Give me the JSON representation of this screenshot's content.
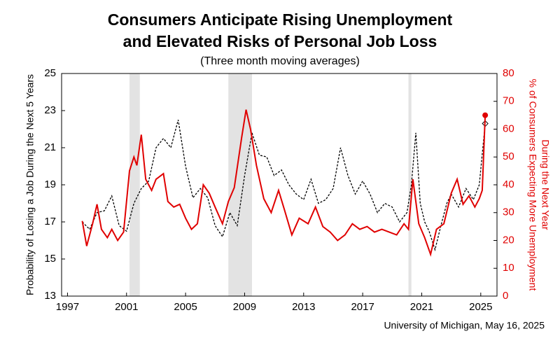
{
  "chart_data": {
    "type": "line",
    "title": [
      "Consumers Anticipate Rising Unemployment",
      "and Elevated Risks of Personal Job Loss"
    ],
    "subtitle": "(Three month moving averages)",
    "ylabel": "Probability of Losing a Job During the Next 5 Years",
    "y2label": [
      "% of Consumers Expecting More Unemployment",
      "During the Next Year"
    ],
    "source": "University of Michigan, May 16, 2025",
    "xlim": [
      1996.6,
      2026.1
    ],
    "xticks": [
      1997,
      2001,
      2005,
      2009,
      2013,
      2017,
      2021,
      2025
    ],
    "ylim": [
      13,
      25
    ],
    "yticks": [
      13,
      15,
      17,
      19,
      21,
      23,
      25
    ],
    "y2lim": [
      0,
      80
    ],
    "y2ticks": [
      0,
      10,
      20,
      30,
      40,
      50,
      60,
      70,
      80
    ],
    "shaded_periods": [
      [
        2001.2,
        2001.9
      ],
      [
        2007.9,
        2009.5
      ],
      [
        2020.1,
        2020.3
      ]
    ],
    "shade_color": "#e3e3e3",
    "series": [
      {
        "color": "#000000",
        "dash": true,
        "marker": "diamond",
        "x": [
          1998.0,
          1998.5,
          1999.0,
          1999.5,
          2000.0,
          2000.5,
          2001.0,
          2001.5,
          2002.0,
          2002.5,
          2003.0,
          2003.5,
          2004.0,
          2004.5,
          2005.0,
          2005.5,
          2006.0,
          2006.5,
          2007.0,
          2007.5,
          2008.0,
          2008.5,
          2009.0,
          2009.5,
          2010.0,
          2010.5,
          2011.0,
          2011.5,
          2012.0,
          2012.5,
          2013.0,
          2013.5,
          2014.0,
          2014.5,
          2015.0,
          2015.5,
          2016.0,
          2016.5,
          2017.0,
          2017.5,
          2018.0,
          2018.5,
          2019.0,
          2019.5,
          2020.0,
          2020.3,
          2020.6,
          2020.9,
          2021.2,
          2021.5,
          2021.9,
          2022.3,
          2022.7,
          2023.0,
          2023.5,
          2024.0,
          2024.5,
          2024.9,
          2025.3
        ],
        "values": [
          17.0,
          16.6,
          17.5,
          17.6,
          18.4,
          16.8,
          16.5,
          18.0,
          18.8,
          19.2,
          21.0,
          21.5,
          21.0,
          22.5,
          20.0,
          18.3,
          18.8,
          18.3,
          16.8,
          16.2,
          17.5,
          16.8,
          19.5,
          21.8,
          20.6,
          20.5,
          19.5,
          19.8,
          19.0,
          18.5,
          18.2,
          19.3,
          18.0,
          18.2,
          18.8,
          21.0,
          19.5,
          18.5,
          19.2,
          18.5,
          17.5,
          18.0,
          17.8,
          17.0,
          17.5,
          19.0,
          21.8,
          18.0,
          17.0,
          16.5,
          15.5,
          16.8,
          18.0,
          18.5,
          17.8,
          18.8,
          18.2,
          19.0,
          22.3
        ]
      },
      {
        "color": "#e00000",
        "dash": false,
        "marker": "circle",
        "axis": "y2",
        "x": [
          1998.0,
          1998.3,
          1998.7,
          1999.0,
          1999.3,
          1999.7,
          2000.0,
          2000.4,
          2000.8,
          2001.2,
          2001.5,
          2001.7,
          2002.0,
          2002.3,
          2002.7,
          2003.0,
          2003.5,
          2003.8,
          2004.2,
          2004.6,
          2005.0,
          2005.4,
          2005.8,
          2006.2,
          2006.6,
          2007.0,
          2007.5,
          2007.9,
          2008.3,
          2008.8,
          2009.1,
          2009.4,
          2009.8,
          2010.3,
          2010.8,
          2011.3,
          2011.7,
          2012.2,
          2012.7,
          2013.3,
          2013.8,
          2014.3,
          2014.8,
          2015.3,
          2015.8,
          2016.3,
          2016.8,
          2017.3,
          2017.8,
          2018.3,
          2018.8,
          2019.3,
          2019.8,
          2020.1,
          2020.4,
          2020.8,
          2021.2,
          2021.6,
          2022.0,
          2022.5,
          2023.0,
          2023.4,
          2023.8,
          2024.2,
          2024.6,
          2024.9,
          2025.1,
          2025.3
        ],
        "values": [
          27,
          18,
          26,
          33,
          24,
          21,
          24,
          20,
          23,
          45,
          50,
          47,
          58,
          42,
          38,
          42,
          44,
          34,
          32,
          33,
          28,
          24,
          26,
          40,
          37,
          32,
          26,
          34,
          39,
          57,
          67,
          60,
          47,
          35,
          30,
          38,
          31,
          22,
          28,
          26,
          32,
          25,
          23,
          20,
          22,
          26,
          24,
          25,
          23,
          24,
          23,
          22,
          26,
          24,
          42,
          26,
          21,
          15,
          24,
          26,
          37,
          42,
          33,
          36,
          32,
          35,
          38,
          65
        ]
      }
    ]
  }
}
